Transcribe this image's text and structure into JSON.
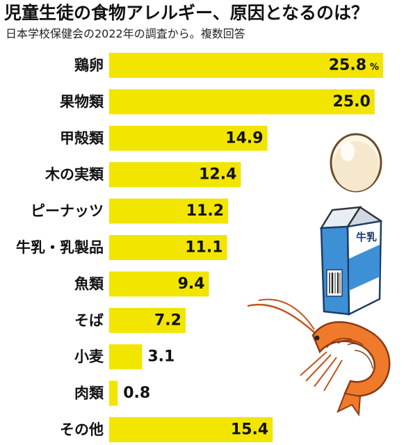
{
  "title": "児童生徒の食物アレルギー、原因となるのは？",
  "subtitle": "日本学校保健会の2022年の調査から。複数回答",
  "colors": {
    "bar": "#f2e500",
    "text": "#111111",
    "egg": "#f6e8cc",
    "milk_blue": "#3d8fd6",
    "shrimp": "#f07a2c"
  },
  "icons": [
    "egg-icon",
    "milk-carton-icon",
    "shrimp-icon"
  ],
  "milk_text": "牛乳",
  "chart_data": {
    "type": "bar",
    "orientation": "horizontal",
    "categories": [
      "鶏卵",
      "果物類",
      "甲殻類",
      "木の実類",
      "ピーナッツ",
      "牛乳・乳製品",
      "魚類",
      "そば",
      "小麦",
      "肉類",
      "その他"
    ],
    "values": [
      25.8,
      25.0,
      14.9,
      12.4,
      11.2,
      11.1,
      9.4,
      7.2,
      3.1,
      0.8,
      15.4
    ],
    "value_labels": [
      "25.8",
      "25.0",
      "14.9",
      "12.4",
      "11.2",
      "11.1",
      "9.4",
      "7.2",
      "3.1",
      "0.8",
      "15.4"
    ],
    "unit": "%",
    "title": "児童生徒の食物アレルギー、原因となるのは？",
    "subtitle": "日本学校保健会の2022年の調査から。複数回答",
    "xlim": [
      0,
      27.5
    ],
    "grid": false,
    "legend": "none"
  }
}
